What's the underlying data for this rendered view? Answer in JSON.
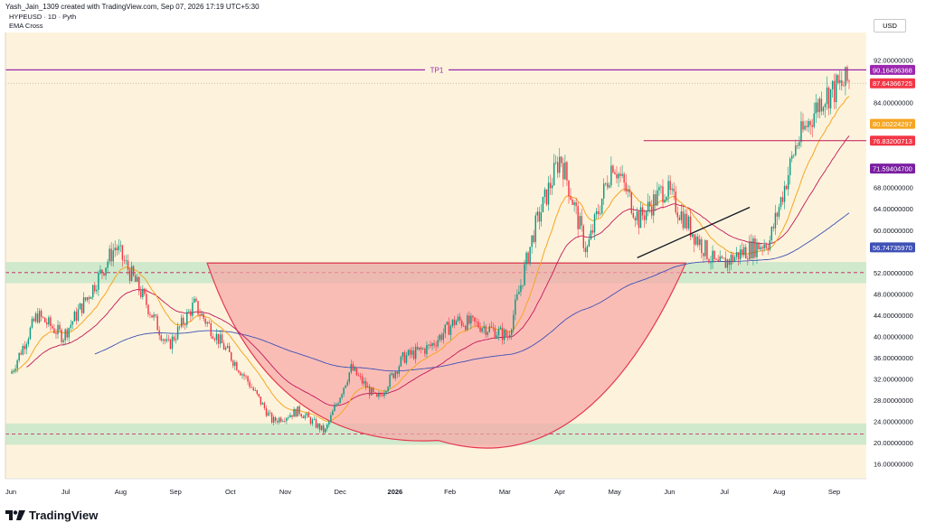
{
  "header": {
    "creator_line": "Yash_Jain_1309 created with TradingView.com, Sep 07, 2026 17:19 UTC+5:30"
  },
  "legend": {
    "symbol": "HYPEUSD · 1D · Pyth",
    "indicator": "EMA Cross"
  },
  "currency": "USD",
  "brand": {
    "name": "TradingView",
    "icon": "tradingview-logo-icon"
  },
  "colors": {
    "background": "#fdf3dc",
    "up": "#089981",
    "down": "#f23645",
    "ema_fast": "#f5a623",
    "ema_mid": "#c2185b",
    "ema_slow": "#3f51b5",
    "tp_line": "#9c27b0",
    "zone": "#c8e6c9",
    "cup": "#f8a5a5"
  },
  "chart_data": {
    "type": "candlestick",
    "x_labels": [
      "Jun",
      "Jul",
      "Aug",
      "Sep",
      "Oct",
      "Nov",
      "Dec",
      "2026",
      "Feb",
      "Mar",
      "Apr",
      "May",
      "Jun",
      "Jul",
      "Aug",
      "Sep"
    ],
    "y_ticks": [
      "92.00000000",
      "84.00000000",
      "72.00000000",
      "68.00000000",
      "64.00000000",
      "60.00000000",
      "52.00000000",
      "48.00000000",
      "44.00000000",
      "40.00000000",
      "36.00000000",
      "32.00000000",
      "28.00000000",
      "24.00000000",
      "20.00000000",
      "16.00000000"
    ],
    "ylim": [
      13.2,
      97.2
    ],
    "price_badges": [
      {
        "label": "90.16496368",
        "color": "#9c27b0"
      },
      {
        "label": "87.64366725",
        "color": "#f23645"
      },
      {
        "label": "80.00224297",
        "color": "#f5a623"
      },
      {
        "label": "76.83200713",
        "color": "#f23645"
      },
      {
        "label": "71.59404700",
        "color": "#7b1fa2"
      },
      {
        "label": "56.74735970",
        "color": "#3f51b5"
      }
    ],
    "levels": {
      "tp1": 90.16,
      "tp1_label": "TP1",
      "last_price": 87.64,
      "resistance": 76.83
    },
    "zones": [
      {
        "low": 50.0,
        "high": 54.0,
        "mid": 52.0
      },
      {
        "low": 19.6,
        "high": 23.6,
        "mid": 21.6
      }
    ],
    "cup_rim": 53.8,
    "cup_bottom": 20.4,
    "trendline": {
      "start": 54.8,
      "end": 64.3
    },
    "keypoints": [
      {
        "label": "Jun",
        "value": 33
      },
      {
        "label": "Jul",
        "value": 44
      },
      {
        "label": "Aug",
        "value": 40
      },
      {
        "label": "Sep",
        "value": 48
      },
      {
        "label": "Sep",
        "value": 57
      },
      {
        "label": "Oct",
        "value": 48
      },
      {
        "label": "Oct",
        "value": 38
      },
      {
        "label": "Nov",
        "value": 46
      },
      {
        "label": "Nov",
        "value": 39
      },
      {
        "label": "Dec",
        "value": 32
      },
      {
        "label": "Dec",
        "value": 24
      },
      {
        "label": "2026",
        "value": 26
      },
      {
        "label": "2026",
        "value": 22
      },
      {
        "label": "Feb",
        "value": 34
      },
      {
        "label": "Mar",
        "value": 28
      },
      {
        "label": "Mar",
        "value": 36
      },
      {
        "label": "Apr",
        "value": 38
      },
      {
        "label": "Apr",
        "value": 43
      },
      {
        "label": "May",
        "value": 42
      },
      {
        "label": "May",
        "value": 40
      },
      {
        "label": "Jun",
        "value": 60
      },
      {
        "label": "Jun",
        "value": 74
      },
      {
        "label": "Jun",
        "value": 56
      },
      {
        "label": "Jun",
        "value": 73
      },
      {
        "label": "Jul",
        "value": 62
      },
      {
        "label": "Jul",
        "value": 68
      },
      {
        "label": "Jul",
        "value": 60
      },
      {
        "label": "Aug",
        "value": 53
      },
      {
        "label": "Aug",
        "value": 56
      },
      {
        "label": "Aug",
        "value": 58
      },
      {
        "label": "Aug",
        "value": 76
      },
      {
        "label": "Sep",
        "value": 85
      },
      {
        "label": "Sep",
        "value": 88
      }
    ]
  }
}
